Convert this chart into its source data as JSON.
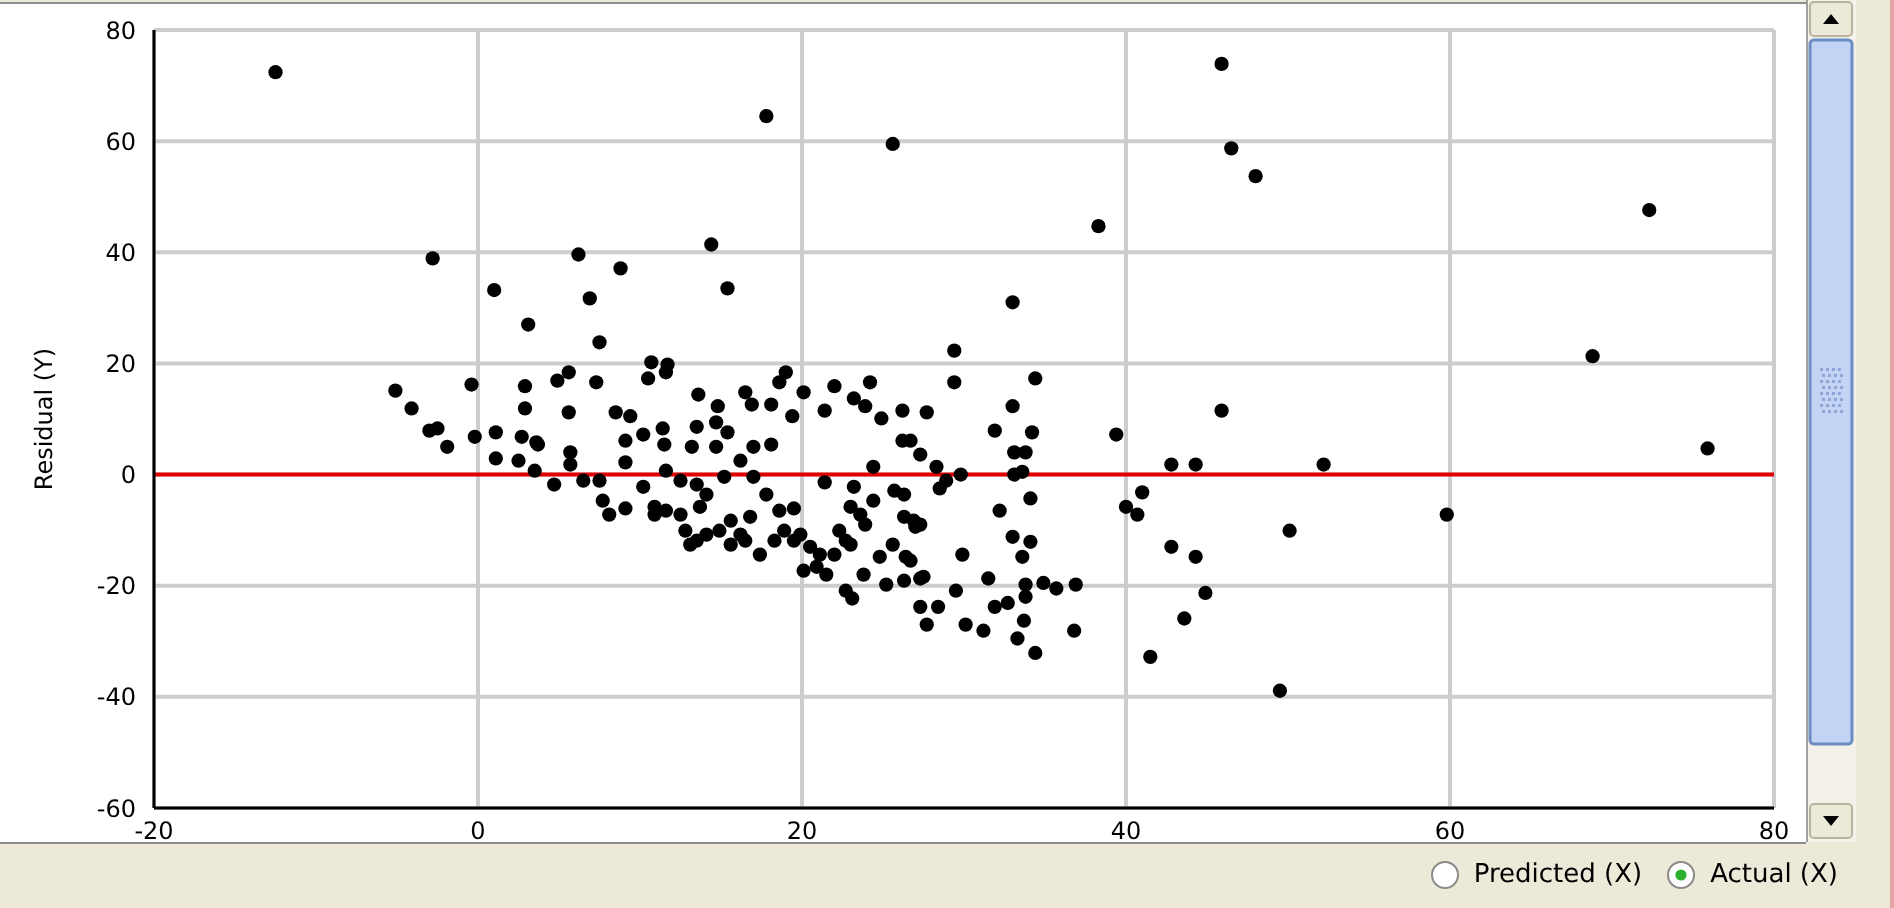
{
  "chart_data": {
    "type": "scatter",
    "ylabel": "Residual (Y)",
    "annotations": [
      "Predicted (X)",
      "Actual (X)"
    ],
    "x": [
      -12.5,
      17.8,
      25.6,
      45.9,
      46.5,
      48.0,
      38.3,
      72.3,
      68.8,
      75.9,
      14.4,
      -2.8,
      6.2,
      8.8,
      6.9,
      15.4,
      1.0,
      3.1,
      7.5,
      33.0,
      29.4,
      29.4,
      34.4,
      27.7,
      33.0,
      31.9,
      34.2,
      39.4,
      33.1,
      33.8,
      45.9,
      52.2,
      42.8,
      44.3,
      59.8,
      50.1,
      41.0,
      40.0,
      40.7,
      42.8,
      44.3,
      44.9,
      43.6,
      41.5,
      49.5,
      29.8,
      33.1,
      33.6,
      28.5,
      34.1,
      32.2,
      29.9,
      33.0,
      34.1,
      33.6,
      27.3,
      27.5,
      31.5,
      29.5,
      33.8,
      34.9,
      35.7,
      36.9,
      33.8,
      32.7,
      31.9,
      28.4,
      27.7,
      30.1,
      31.2,
      33.7,
      33.3,
      34.4,
      36.8,
      -5.1,
      -4.1,
      -3.0,
      -2.5,
      -1.9,
      -0.4,
      -0.2,
      1.1,
      2.9,
      2.9,
      2.7,
      3.6,
      4.9,
      5.6,
      5.6,
      7.3,
      8.5,
      9.4,
      10.5,
      10.7,
      11.7,
      11.6,
      13.6,
      14.8,
      16.5,
      16.9,
      18.1,
      19.0,
      18.6,
      20.1,
      19.4,
      21.4,
      22.0,
      23.2,
      24.2,
      23.9,
      24.9,
      26.2,
      9.1,
      10.2,
      11.4,
      11.5,
      13.5,
      14.7,
      15.4,
      14.7,
      17.0,
      18.1,
      13.2,
      26.2,
      26.7,
      27.3,
      5.7,
      3.7,
      1.1,
      2.5,
      3.5,
      4.7,
      5.7,
      6.5,
      7.5,
      7.7,
      8.1,
      9.1,
      10.2,
      10.9,
      11.6,
      12.5,
      12.8,
      13.5,
      14.1,
      14.9,
      15.6,
      16.2,
      16.8,
      17.4,
      18.3,
      18.9,
      19.5,
      20.1,
      21.5,
      19.5,
      21.4,
      23.2,
      24.4,
      24.4,
      23.6,
      23.0,
      26.3,
      26.9,
      24.8,
      26.4,
      26.3,
      28.3,
      28.9,
      14.1,
      15.2,
      16.2,
      17.0,
      11.6,
      12.5,
      13.5,
      17.8,
      18.6,
      20.5,
      22.0,
      22.7,
      20.9,
      9.1,
      13.1,
      13.7,
      15.6,
      16.5,
      19.9,
      21.1,
      22.3,
      23.0,
      22.7,
      23.1,
      23.9,
      23.8,
      25.2,
      25.6,
      25.7,
      26.3,
      26.7,
      27.0,
      27.3,
      27.3,
      10.9
    ],
    "values": [
      72.4,
      64.5,
      59.5,
      73.9,
      58.7,
      53.7,
      44.7,
      47.6,
      21.3,
      4.7,
      41.4,
      38.9,
      39.6,
      37.1,
      31.7,
      33.5,
      33.2,
      27.0,
      23.8,
      31.0,
      22.3,
      16.6,
      17.3,
      11.2,
      12.3,
      7.9,
      7.6,
      7.2,
      4.0,
      4.0,
      11.5,
      1.8,
      1.8,
      1.8,
      -7.2,
      -10.1,
      -3.2,
      -5.8,
      -7.2,
      -13.0,
      -14.8,
      -21.3,
      -25.9,
      -32.8,
      -38.9,
      0.0,
      0.0,
      0.5,
      -2.5,
      -4.3,
      -6.5,
      -14.4,
      -11.2,
      -12.1,
      -14.8,
      -9.0,
      -18.4,
      -18.7,
      -20.9,
      -19.8,
      -19.5,
      -20.5,
      -19.8,
      -22.0,
      -23.1,
      -23.8,
      -23.8,
      -27.0,
      -27.0,
      -28.1,
      -26.3,
      -29.5,
      -32.1,
      -28.1,
      15.1,
      11.9,
      7.9,
      8.3,
      5.0,
      16.2,
      6.8,
      7.6,
      15.9,
      11.9,
      6.8,
      5.8,
      16.9,
      18.4,
      11.2,
      16.6,
      11.2,
      10.5,
      17.3,
      20.2,
      19.8,
      18.4,
      14.4,
      12.3,
      14.8,
      12.6,
      12.6,
      18.4,
      16.6,
      14.8,
      10.5,
      11.5,
      15.9,
      13.7,
      16.6,
      12.3,
      10.1,
      11.5,
      6.1,
      7.2,
      8.3,
      5.4,
      8.6,
      9.4,
      7.6,
      5.0,
      5.0,
      5.4,
      5.0,
      6.1,
      6.1,
      3.6,
      4.0,
      5.4,
      2.9,
      2.5,
      0.7,
      -1.8,
      1.8,
      -1.1,
      -1.1,
      -4.7,
      -7.2,
      2.2,
      -2.2,
      -5.8,
      -6.5,
      -7.2,
      -10.1,
      -11.9,
      -10.8,
      -10.1,
      -8.3,
      -10.8,
      -7.6,
      -14.4,
      -11.9,
      -10.1,
      -11.9,
      -17.3,
      -18.0,
      -6.1,
      -1.4,
      -2.2,
      1.4,
      -4.7,
      -7.2,
      -5.8,
      -3.6,
      -8.3,
      -14.8,
      -14.8,
      -19.1,
      1.4,
      -1.1,
      -3.6,
      -0.4,
      2.5,
      -0.4,
      0.7,
      -1.1,
      -1.8,
      -3.6,
      -6.5,
      -13.0,
      -14.4,
      -11.9,
      -16.6,
      -6.1,
      -12.6,
      -5.8,
      -12.6,
      -11.9,
      -10.8,
      -14.4,
      -10.1,
      -12.6,
      -20.9,
      -22.3,
      -9.0,
      -18.0,
      -19.8,
      -12.6,
      -2.9,
      -7.6,
      -15.5,
      -9.4,
      -18.7,
      -23.8,
      -7.2
    ],
    "color": "#000000",
    "marker": "circle",
    "xlim": [
      -20,
      80
    ],
    "xticks": [
      -20,
      0,
      20,
      40,
      60,
      80
    ],
    "ylim": [
      -60,
      80
    ],
    "yticks": [
      -60,
      -40,
      -20,
      0,
      20,
      40,
      60,
      80
    ],
    "grid": true,
    "ref_lines": [
      {
        "axis": "y",
        "value": 0,
        "color": "#e00000"
      }
    ]
  }
}
